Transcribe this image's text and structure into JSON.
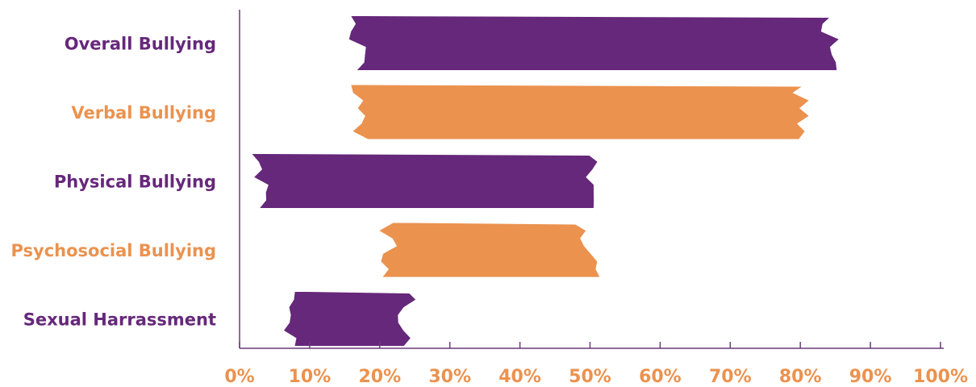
{
  "colors": {
    "purple": "#66287a",
    "orange": "#eb924f",
    "axis": "#6a3a78"
  },
  "chart_data": {
    "type": "bar",
    "orientation": "horizontal",
    "style": "floating-range brush strokes",
    "categories": [
      "Overall Bullying",
      "Verbal Bullying",
      "Physical Bullying",
      "Psychosocial Bullying",
      "Sexual Harrassment"
    ],
    "ranges": [
      {
        "category": "Overall Bullying",
        "start": 17,
        "end": 84,
        "color": "purple"
      },
      {
        "category": "Verbal Bullying",
        "start": 17,
        "end": 80,
        "color": "orange"
      },
      {
        "category": "Physical Bullying",
        "start": 3,
        "end": 50,
        "color": "purple"
      },
      {
        "category": "Psychosocial Bullying",
        "start": 21,
        "end": 50,
        "color": "orange"
      },
      {
        "category": "Sexual Harrassment",
        "start": 7,
        "end": 24,
        "color": "purple"
      }
    ],
    "x_ticks": [
      "0%",
      "10%",
      "20%",
      "30%",
      "40%",
      "50%",
      "60%",
      "70%",
      "80%",
      "90%",
      "100%"
    ],
    "xlim": [
      0,
      100
    ],
    "grid": false,
    "legend": "none"
  }
}
